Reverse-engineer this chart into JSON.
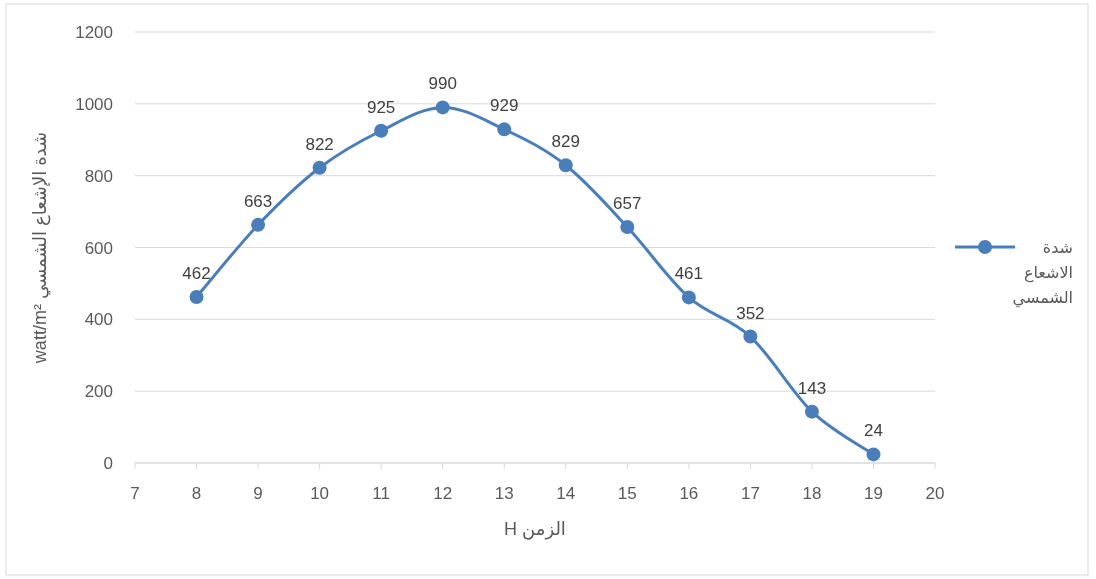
{
  "chart_data": {
    "type": "line",
    "xlabel": "الزمن H",
    "ylabel": "شدة الإشعاع الشمسي  watt/m²",
    "x": [
      8,
      9,
      10,
      11,
      12,
      13,
      14,
      15,
      16,
      17,
      18,
      19
    ],
    "series": [
      {
        "name": "شدة الاشعاع الشمسي",
        "color": "#4a7ebb",
        "values": [
          462,
          663,
          822,
          925,
          990,
          929,
          829,
          657,
          461,
          352,
          143,
          24
        ]
      }
    ],
    "xlim": [
      7,
      20
    ],
    "xticks": [
      7,
      8,
      9,
      10,
      11,
      12,
      13,
      14,
      15,
      16,
      17,
      18,
      19,
      20
    ],
    "ylim": [
      0,
      1200
    ],
    "yticks": [
      0,
      200,
      400,
      600,
      800,
      1000,
      1200
    ],
    "grid": "y",
    "legend": "right",
    "marker": "circle",
    "line_style": "solid",
    "data_labels": true
  }
}
